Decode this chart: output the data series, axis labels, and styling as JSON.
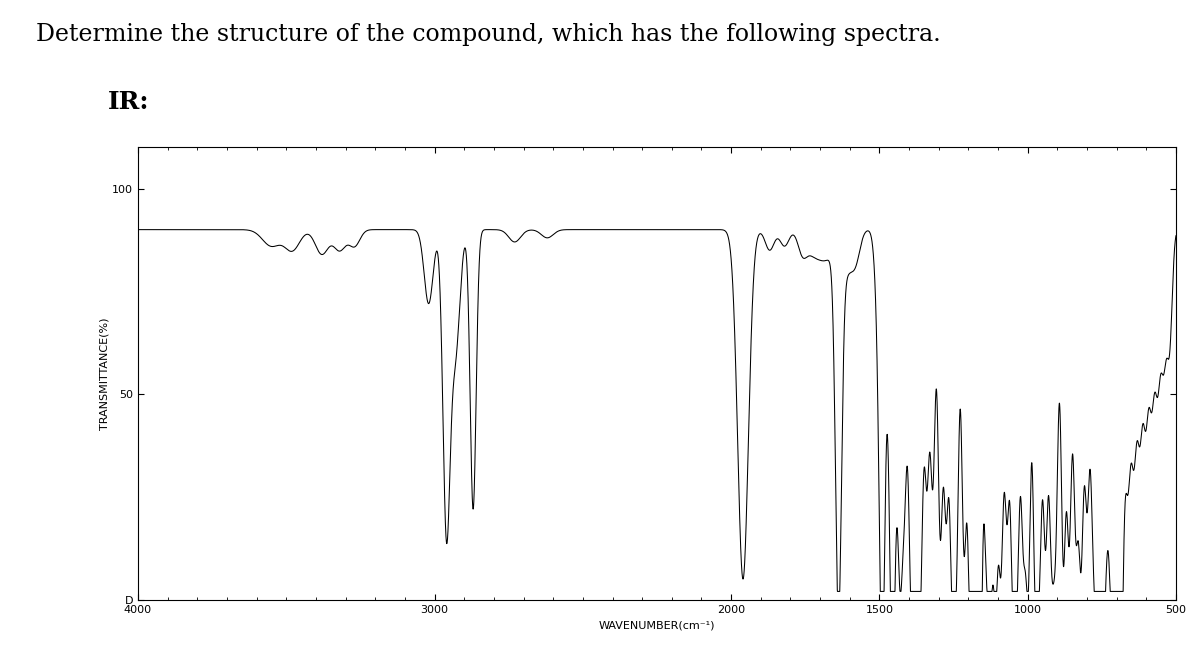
{
  "title": "Determine the structure of the compound, which has the following spectra.",
  "ir_label": "IR:",
  "xlabel": "WAVENUMBER(cm⁻¹)",
  "ylabel": "TRANSMITTANCE(%)",
  "yticks": [
    0,
    50,
    100
  ],
  "ytick_labels": [
    "D",
    "50",
    "100"
  ],
  "xticks": [
    4000,
    3000,
    2000,
    1500,
    1000,
    500
  ],
  "xlim": [
    4000,
    500
  ],
  "ylim": [
    0,
    110
  ],
  "background_color": "#ffffff",
  "line_color": "#000000",
  "title_fontsize": 17,
  "ir_label_fontsize": 18,
  "axis_label_fontsize": 8,
  "tick_fontsize": 8
}
